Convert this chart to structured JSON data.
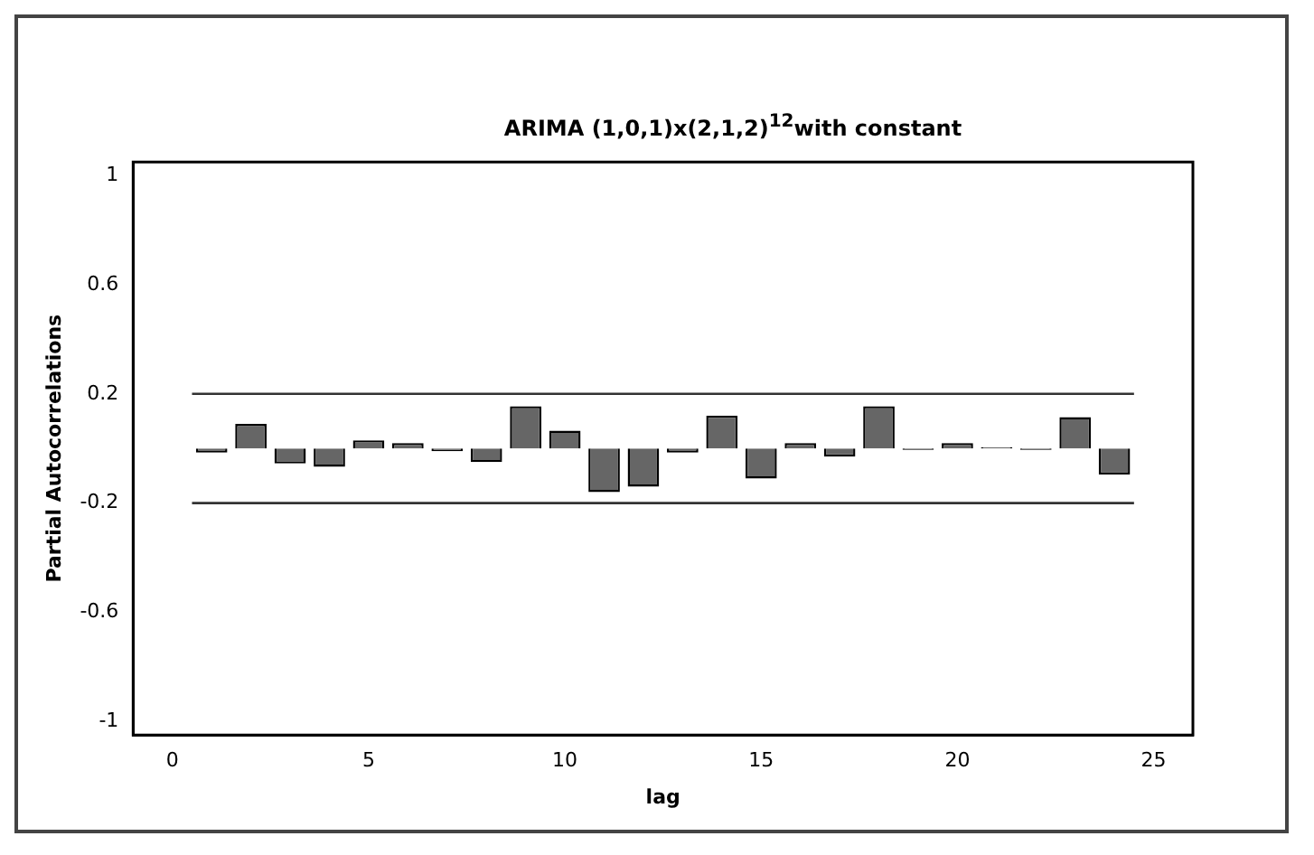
{
  "chart_data": {
    "type": "bar",
    "title": "ARIMA (1,0,1)x(2,1,2)$^{12}$with constant",
    "xlabel": "lag",
    "ylabel": "Partial Autocorrelations",
    "x": [
      1,
      2,
      3,
      4,
      5,
      6,
      7,
      8,
      9,
      10,
      11,
      12,
      13,
      14,
      15,
      16,
      17,
      18,
      19,
      20,
      21,
      22,
      23,
      24
    ],
    "values": [
      -0.015,
      0.09,
      -0.055,
      -0.067,
      0.03,
      0.02,
      -0.01,
      -0.05,
      0.155,
      0.065,
      -0.16,
      -0.14,
      -0.015,
      0.12,
      -0.11,
      0.02,
      -0.03,
      0.155,
      -0.005,
      0.02,
      0.005,
      -0.005,
      0.115,
      -0.095
    ],
    "color": "#666666",
    "xlim": [
      -1,
      26
    ],
    "xticks": [
      0,
      5,
      10,
      15,
      20,
      25
    ],
    "ylim": [
      -1.05,
      1.05
    ],
    "yticks": [
      -1,
      -0.6,
      -0.2,
      0.2,
      0.6,
      1
    ],
    "ref_lines": [
      {
        "axis": "y",
        "value": 0.2,
        "color": "#333333"
      },
      {
        "axis": "y",
        "value": -0.2,
        "color": "#333333"
      }
    ],
    "grid": false,
    "legend": false
  }
}
